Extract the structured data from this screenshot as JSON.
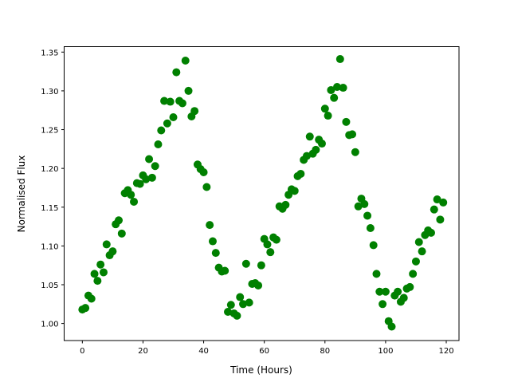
{
  "chart_data": {
    "type": "scatter",
    "title": "",
    "xlabel": "Time (Hours)",
    "ylabel": "Normalised Flux",
    "xlim": [
      -6.0,
      124.2
    ],
    "ylim": [
      0.978,
      1.357
    ],
    "xticks": [
      0,
      20,
      40,
      60,
      80,
      100,
      120
    ],
    "xtick_labels": [
      "0",
      "20",
      "40",
      "60",
      "80",
      "100",
      "120"
    ],
    "yticks": [
      1.0,
      1.05,
      1.1,
      1.15,
      1.2,
      1.25,
      1.3,
      1.35
    ],
    "ytick_labels": [
      "1.00",
      "1.05",
      "1.10",
      "1.15",
      "1.20",
      "1.25",
      "1.30",
      "1.35"
    ],
    "grid": false,
    "marker_color": "#008000",
    "series": [
      {
        "x": [
          0,
          1,
          2,
          3,
          4,
          5,
          6,
          7,
          8,
          9,
          10,
          11,
          12,
          13,
          14,
          15,
          16,
          17,
          18,
          19,
          20,
          21,
          22,
          23,
          24,
          25,
          26,
          27,
          28,
          29,
          30,
          31,
          32,
          33,
          34,
          35,
          36,
          37,
          38,
          39,
          40,
          41,
          42,
          43,
          44,
          45,
          46,
          47,
          48,
          49,
          50,
          51,
          52,
          53,
          54,
          55,
          56,
          57,
          58,
          59,
          60,
          61,
          62,
          63,
          64,
          65,
          66,
          67,
          68,
          69,
          70,
          71,
          72,
          73,
          74,
          75,
          76,
          77,
          78,
          79,
          80,
          81,
          82,
          83,
          84,
          85,
          86,
          87,
          88,
          89,
          90,
          91,
          92,
          93,
          94,
          95,
          96,
          97,
          98,
          99,
          100,
          101,
          102,
          103,
          104,
          105,
          106,
          107,
          108,
          109,
          110,
          111,
          112,
          113,
          114,
          115,
          116,
          117,
          118,
          119
        ],
        "y": [
          1.018,
          1.02,
          1.036,
          1.032,
          1.064,
          1.055,
          1.076,
          1.066,
          1.102,
          1.088,
          1.093,
          1.128,
          1.133,
          1.116,
          1.168,
          1.172,
          1.166,
          1.157,
          1.181,
          1.18,
          1.191,
          1.186,
          1.212,
          1.188,
          1.203,
          1.231,
          1.249,
          1.287,
          1.258,
          1.286,
          1.266,
          1.324,
          1.287,
          1.284,
          1.339,
          1.3,
          1.267,
          1.274,
          1.205,
          1.199,
          1.195,
          1.176,
          1.127,
          1.106,
          1.091,
          1.072,
          1.067,
          1.068,
          1.015,
          1.024,
          1.013,
          1.01,
          1.034,
          1.025,
          1.077,
          1.027,
          1.051,
          1.052,
          1.049,
          1.075,
          1.109,
          1.102,
          1.092,
          1.111,
          1.108,
          1.151,
          1.148,
          1.153,
          1.166,
          1.173,
          1.171,
          1.19,
          1.193,
          1.211,
          1.216,
          1.241,
          1.219,
          1.224,
          1.237,
          1.232,
          1.277,
          1.268,
          1.301,
          1.291,
          1.305,
          1.341,
          1.304,
          1.26,
          1.243,
          1.244,
          1.221,
          1.151,
          1.161,
          1.154,
          1.139,
          1.123,
          1.101,
          1.064,
          1.041,
          1.025,
          1.041,
          1.003,
          0.996,
          1.036,
          1.041,
          1.028,
          1.033,
          1.045,
          1.047,
          1.064,
          1.08,
          1.105,
          1.093,
          1.114,
          1.12,
          1.117,
          1.147,
          1.16,
          1.134,
          1.156
        ]
      }
    ]
  }
}
